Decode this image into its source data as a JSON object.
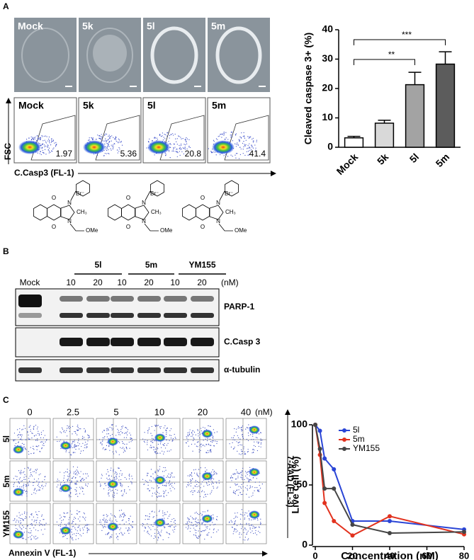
{
  "panels": [
    "A",
    "B",
    "C"
  ],
  "panel_a": {
    "labels": [
      "Mock",
      "5k",
      "5l",
      "5m"
    ],
    "flow_values": [
      1.97,
      5.36,
      20.8,
      41.4
    ],
    "y_axis": "FSC",
    "x_axis": "C.Casp3 (FL-1)",
    "structure": {
      "o_top": "O",
      "o_bottom": "O",
      "n_top": "N",
      "n_bottom": "N",
      "counter_ion": "Br⁻",
      "methyl": "CH₃",
      "ether": "OMe"
    }
  },
  "panel_b": {
    "groups": [
      "5l",
      "5m",
      "YM155"
    ],
    "lanes": [
      "Mock",
      "10",
      "20",
      "10",
      "20",
      "10",
      "20"
    ],
    "unit": "(nM)",
    "bands": [
      "PARP-1",
      "C.Casp 3",
      "α-tubulin"
    ]
  },
  "panel_c": {
    "concentrations": [
      0,
      2.5,
      5,
      10,
      20,
      40
    ],
    "unit": "(nM)",
    "rows": [
      "5l",
      "5m",
      "YM155"
    ],
    "x_axis": "Annexin V (FL-1)",
    "y_axis": "7-AAD (FL-3)"
  },
  "chart_data": [
    {
      "type": "bar",
      "y_label": "Cleaved caspase 3+ (%)",
      "categories": [
        "Mock",
        "5k",
        "5l",
        "5m"
      ],
      "values": [
        3.2,
        8.2,
        21.3,
        28.3
      ],
      "errors": [
        0.5,
        1.0,
        4.2,
        4.2
      ],
      "colors": [
        "#ffffff",
        "#d9d9d9",
        "#a3a3a3",
        "#5c5c5c"
      ],
      "ylim": [
        0,
        40
      ],
      "yticks": [
        0,
        10,
        20,
        30,
        40
      ],
      "annotations": [
        "**",
        "***"
      ]
    },
    {
      "type": "line",
      "x_label": "Concentration (nM)",
      "y_label": "Live cell (%)",
      "x": [
        0,
        2.5,
        5,
        10,
        20,
        40,
        80
      ],
      "series": [
        {
          "name": "5l",
          "color": "#2a45d6",
          "values": [
            100,
            95,
            72,
            63,
            20,
            20,
            13
          ]
        },
        {
          "name": "5m",
          "color": "#e2321e",
          "values": [
            100,
            75,
            35,
            20,
            8,
            24,
            9
          ]
        },
        {
          "name": "YM155",
          "color": "#454545",
          "values": [
            100,
            80,
            47,
            47,
            17,
            10,
            11
          ]
        }
      ],
      "xlim": [
        0,
        80
      ],
      "xticks": [
        0,
        20,
        40,
        60,
        80
      ],
      "ylim": [
        0,
        100
      ],
      "yticks": [
        0,
        50,
        100
      ],
      "legend": "upper right"
    }
  ]
}
